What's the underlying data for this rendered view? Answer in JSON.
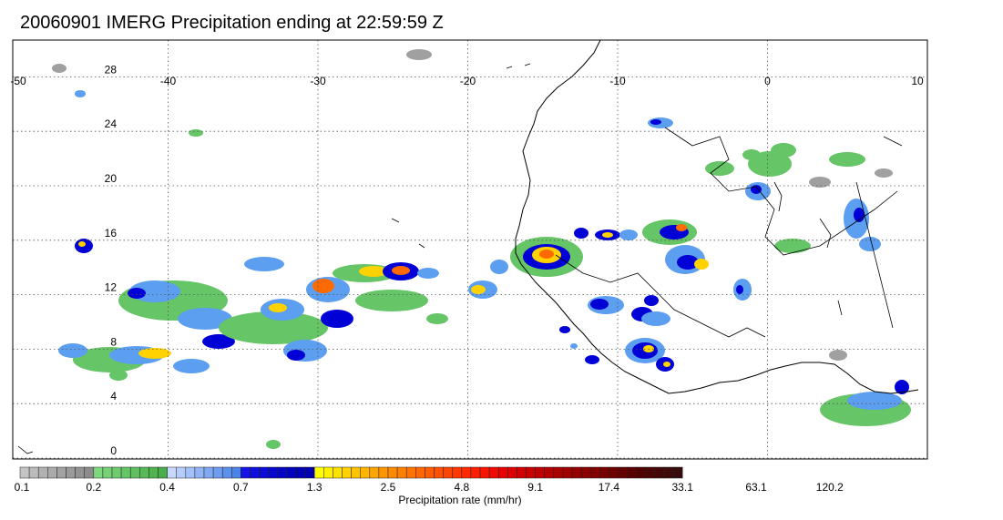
{
  "title": "20060901 IMERG Precipitation ending at 22:59:59 Z",
  "map": {
    "lon_range": [
      -50,
      10
    ],
    "lat_range": [
      -1,
      30
    ],
    "lon_ticks": [
      "-50",
      "-40",
      "-30",
      "-20",
      "-10",
      "0",
      "10"
    ],
    "lat_ticks": [
      "28",
      "24",
      "20",
      "16",
      "12",
      "8",
      "4",
      "0"
    ],
    "gridline_style": "dotted",
    "coastline_color": "#000000"
  },
  "colorbar": {
    "title": "Precipitation rate (mm/hr)",
    "labels": [
      "0.1",
      "0.2",
      "0.4",
      "0.7",
      "1.3",
      "2.5",
      "4.8",
      "9.1",
      "17.4",
      "33.1",
      "63.1",
      "120.2"
    ],
    "group_colors": [
      [
        "#c4c4c4",
        "#bbbbbb",
        "#b2b2b2",
        "#aaaaaa",
        "#a2a2a2",
        "#9a9a9a",
        "#939393",
        "#8c8c8c"
      ],
      [
        "#7fd77f",
        "#76d176",
        "#6ecb6e",
        "#66c566",
        "#5fbf5f",
        "#57b957",
        "#50b350",
        "#49ad49"
      ],
      [
        "#c8d8ff",
        "#b6ccff",
        "#a4c0fb",
        "#92b4f7",
        "#80a8f3",
        "#6e9cef",
        "#5c90eb",
        "#4a84e7"
      ],
      [
        "#1414e6",
        "#1010de",
        "#0c0cd6",
        "#0808ce",
        "#0505c6",
        "#0202be",
        "#0000b6",
        "#0000ae"
      ],
      [
        "#ffff00",
        "#fff000",
        "#ffe100",
        "#ffd200",
        "#ffc300",
        "#ffb400",
        "#ffa500",
        "#ff9600"
      ],
      [
        "#ff8a00",
        "#ff7f00",
        "#ff7300",
        "#ff6700",
        "#ff5b00",
        "#ff4f00",
        "#ff4300",
        "#ff3700"
      ],
      [
        "#ff2a00",
        "#fc1e00",
        "#f81200",
        "#f00a00",
        "#e60000",
        "#dc0000",
        "#d20000",
        "#c80000"
      ],
      [
        "#be0000",
        "#b40000",
        "#aa0000",
        "#a00000",
        "#960000",
        "#8c0000",
        "#820000",
        "#780000"
      ],
      [
        "#6e0000",
        "#640000",
        "#5a0000",
        "#500000",
        "#4a0505",
        "#440808",
        "#3e0a0a",
        "#380c0c"
      ]
    ]
  },
  "precip_colors": {
    "trace": "#a0a0a0",
    "light": "#66c566",
    "moderate": "#5c9ef0",
    "heavy": "#0000d6",
    "very_heavy": "#ffd200",
    "intense": "#ff6a00"
  }
}
